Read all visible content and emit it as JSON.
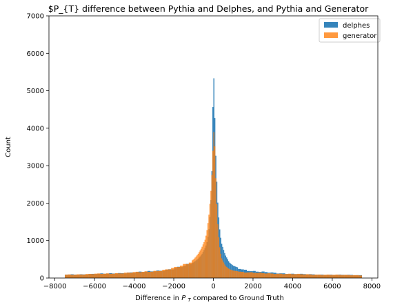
{
  "chart_data": {
    "type": "bar",
    "title": "$P_{T} difference between Pythia and Delphes, and Pythia and Generator",
    "xlabel_prefix": "Difference in ",
    "xlabel_symbol": "P",
    "xlabel_sub": "T",
    "xlabel_suffix": " compared to Ground Truth",
    "ylabel": "Count",
    "xlim": [
      -8300,
      8300
    ],
    "ylim": [
      0,
      7000
    ],
    "xticks": [
      -8000,
      -6000,
      -4000,
      -2000,
      0,
      2000,
      4000,
      6000,
      8000
    ],
    "yticks": [
      0,
      1000,
      2000,
      3000,
      4000,
      5000,
      6000,
      7000
    ],
    "grid": false,
    "legend_position": "top-right",
    "series": [
      {
        "name": "delphes",
        "color": "#1f77b4",
        "alpha": 0.9,
        "points": [
          [
            -7500,
            90
          ],
          [
            -7000,
            95
          ],
          [
            -6500,
            100
          ],
          [
            -6000,
            110
          ],
          [
            -5500,
            115
          ],
          [
            -5000,
            125
          ],
          [
            -4500,
            135
          ],
          [
            -4000,
            150
          ],
          [
            -3500,
            165
          ],
          [
            -3000,
            185
          ],
          [
            -2500,
            210
          ],
          [
            -2000,
            250
          ],
          [
            -1500,
            310
          ],
          [
            -1200,
            370
          ],
          [
            -1000,
            420
          ],
          [
            -800,
            500
          ],
          [
            -600,
            620
          ],
          [
            -400,
            820
          ],
          [
            -300,
            1000
          ],
          [
            -200,
            1400
          ],
          [
            -100,
            2300
          ],
          [
            -50,
            3400
          ],
          [
            0,
            5750
          ],
          [
            50,
            4900
          ],
          [
            100,
            3600
          ],
          [
            200,
            2200
          ],
          [
            300,
            1400
          ],
          [
            400,
            950
          ],
          [
            600,
            620
          ],
          [
            800,
            420
          ],
          [
            1000,
            330
          ],
          [
            1500,
            230
          ],
          [
            2000,
            180
          ],
          [
            3000,
            140
          ],
          [
            4000,
            110
          ],
          [
            5000,
            95
          ],
          [
            6000,
            85
          ],
          [
            7000,
            80
          ],
          [
            7400,
            75
          ]
        ]
      },
      {
        "name": "generator",
        "color": "#ff7f0e",
        "alpha": 0.8,
        "points": [
          [
            -7500,
            90
          ],
          [
            -7000,
            95
          ],
          [
            -6500,
            100
          ],
          [
            -6000,
            110
          ],
          [
            -5500,
            115
          ],
          [
            -5000,
            125
          ],
          [
            -4500,
            135
          ],
          [
            -4000,
            150
          ],
          [
            -3500,
            165
          ],
          [
            -3000,
            185
          ],
          [
            -2500,
            215
          ],
          [
            -2000,
            260
          ],
          [
            -1500,
            340
          ],
          [
            -1200,
            420
          ],
          [
            -1000,
            500
          ],
          [
            -800,
            620
          ],
          [
            -600,
            800
          ],
          [
            -400,
            1050
          ],
          [
            -300,
            1350
          ],
          [
            -200,
            1800
          ],
          [
            -100,
            2500
          ],
          [
            -50,
            3000
          ],
          [
            0,
            3800
          ],
          [
            50,
            4000
          ],
          [
            100,
            3000
          ],
          [
            200,
            1600
          ],
          [
            300,
            900
          ],
          [
            400,
            550
          ],
          [
            600,
            330
          ],
          [
            800,
            240
          ],
          [
            1000,
            200
          ],
          [
            1500,
            160
          ],
          [
            2000,
            140
          ],
          [
            3000,
            120
          ],
          [
            4000,
            105
          ],
          [
            5000,
            95
          ],
          [
            6000,
            85
          ],
          [
            7000,
            80
          ],
          [
            7400,
            75
          ]
        ]
      }
    ]
  }
}
